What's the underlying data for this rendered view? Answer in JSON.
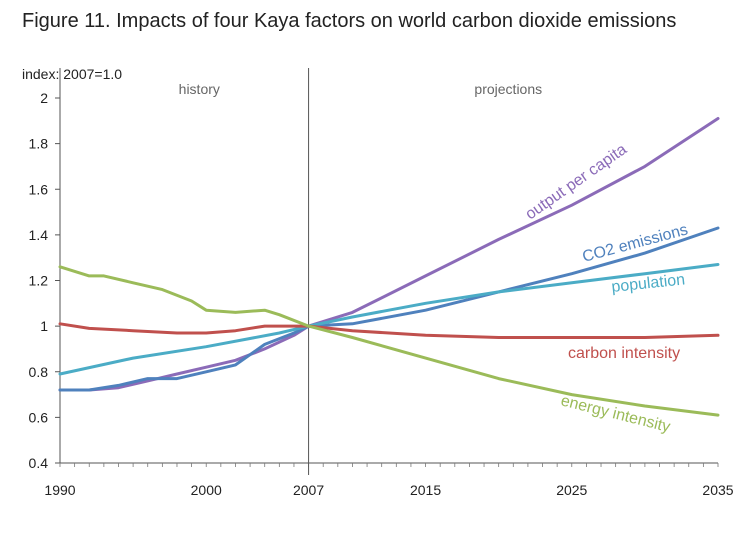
{
  "title": "Figure 11. Impacts of four Kaya factors on world carbon dioxide emissions",
  "chart_data": {
    "type": "line",
    "title": "Figure 11. Impacts of four Kaya factors on world carbon dioxide emissions",
    "ylabel": "index: 2007=1.0",
    "xlabel": "",
    "xlim": [
      1990,
      2035
    ],
    "ylim": [
      0.4,
      2.0
    ],
    "xticks": [
      "1990",
      "2000",
      "2007",
      "2015",
      "2025",
      "2035"
    ],
    "yticks": [
      "0.4",
      "0.6",
      "0.8",
      "1",
      "1.2",
      "1.4",
      "1.6",
      "1.8",
      "2"
    ],
    "grid": false,
    "divider_year": 2007,
    "region_labels": [
      "history",
      "projections"
    ],
    "series": [
      {
        "name": "output per capita",
        "color": "#8B6BB8",
        "x": [
          1990,
          1992,
          1994,
          1996,
          1998,
          2000,
          2002,
          2004,
          2006,
          2007,
          2010,
          2015,
          2020,
          2025,
          2030,
          2035
        ],
        "values": [
          0.72,
          0.72,
          0.73,
          0.76,
          0.79,
          0.82,
          0.85,
          0.9,
          0.96,
          1.0,
          1.06,
          1.22,
          1.38,
          1.53,
          1.7,
          1.91
        ]
      },
      {
        "name": "CO2 emissions",
        "color": "#4F81BD",
        "x": [
          1990,
          1992,
          1994,
          1996,
          1998,
          2000,
          2002,
          2004,
          2006,
          2007,
          2010,
          2015,
          2020,
          2025,
          2030,
          2035
        ],
        "values": [
          0.72,
          0.72,
          0.74,
          0.77,
          0.77,
          0.8,
          0.83,
          0.92,
          0.97,
          1.0,
          1.01,
          1.07,
          1.15,
          1.23,
          1.32,
          1.43
        ]
      },
      {
        "name": "population",
        "color": "#4BACC6",
        "x": [
          1990,
          1995,
          2000,
          2005,
          2007,
          2010,
          2015,
          2020,
          2025,
          2030,
          2035
        ],
        "values": [
          0.79,
          0.86,
          0.91,
          0.97,
          1.0,
          1.04,
          1.1,
          1.15,
          1.19,
          1.23,
          1.27
        ]
      },
      {
        "name": "carbon intensity",
        "color": "#C0504D",
        "x": [
          1990,
          1992,
          1995,
          1998,
          2000,
          2002,
          2004,
          2007,
          2010,
          2015,
          2020,
          2025,
          2030,
          2035
        ],
        "values": [
          1.01,
          0.99,
          0.98,
          0.97,
          0.97,
          0.98,
          1.0,
          1.0,
          0.98,
          0.96,
          0.95,
          0.95,
          0.95,
          0.96
        ]
      },
      {
        "name": "energy intensity",
        "color": "#9BBB59",
        "x": [
          1990,
          1992,
          1993,
          1995,
          1997,
          1999,
          2000,
          2002,
          2004,
          2005,
          2007,
          2010,
          2015,
          2020,
          2025,
          2030,
          2035
        ],
        "values": [
          1.26,
          1.22,
          1.22,
          1.19,
          1.16,
          1.11,
          1.07,
          1.06,
          1.07,
          1.05,
          1.0,
          0.95,
          0.86,
          0.77,
          0.7,
          0.65,
          0.61
        ]
      }
    ]
  }
}
